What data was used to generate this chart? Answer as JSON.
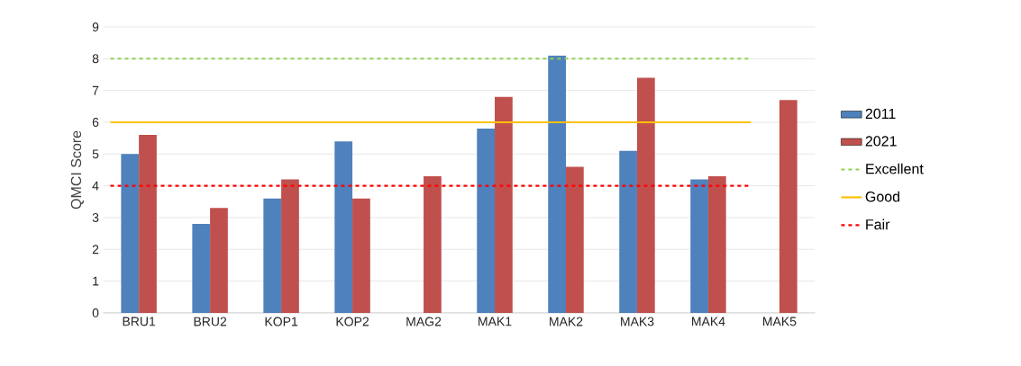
{
  "chart_data": {
    "type": "bar",
    "ylabel": "QMCI Score",
    "categories": [
      "BRU1",
      "BRU2",
      "KOP1",
      "KOP2",
      "MAG2",
      "MAK1",
      "MAK2",
      "MAK3",
      "MAK4",
      "MAK5"
    ],
    "series": [
      {
        "name": "2011",
        "color": "#4f81bd",
        "values": [
          5.0,
          2.8,
          3.6,
          5.4,
          null,
          5.8,
          8.1,
          5.1,
          4.2,
          null
        ]
      },
      {
        "name": "2021",
        "color": "#c0504d",
        "values": [
          5.6,
          3.3,
          4.2,
          3.6,
          4.3,
          6.8,
          4.6,
          7.4,
          4.3,
          6.7
        ]
      }
    ],
    "ref_lines": [
      {
        "axis": "y",
        "value": 8,
        "label": "Excellent",
        "color": "#92d050",
        "line_style": "dashed"
      },
      {
        "axis": "y",
        "value": 6,
        "label": "Good",
        "color": "#ffc000",
        "line_style": "solid"
      },
      {
        "axis": "y",
        "value": 4,
        "label": "Fair",
        "color": "#ff0000",
        "line_style": "dashed"
      }
    ],
    "ylim": [
      0,
      9
    ],
    "yticks": [
      0,
      1,
      2,
      3,
      4,
      5,
      6,
      7,
      8,
      9
    ],
    "grid": "y",
    "legend": "right"
  }
}
